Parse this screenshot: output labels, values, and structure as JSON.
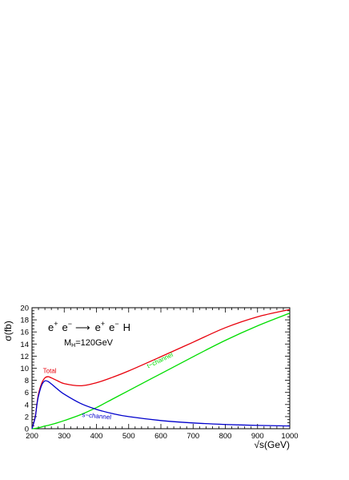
{
  "chart_data": {
    "type": "line",
    "xlabel": "√s(GeV)",
    "ylabel": "σ(fb)",
    "xlim": [
      200,
      1000
    ],
    "ylim": [
      0,
      20
    ],
    "x_ticks": [
      "200",
      "300",
      "400",
      "500",
      "600",
      "700",
      "800",
      "900",
      "1000"
    ],
    "y_ticks": [
      "0",
      "2",
      "4",
      "6",
      "8",
      "10",
      "12",
      "14",
      "16",
      "18",
      "20"
    ],
    "grid": false,
    "annotation": {
      "process": {
        "initial_1": "e",
        "initial_1_sup": "+",
        "initial_2": "e",
        "initial_2_sup": "−",
        "arrow": "⟶",
        "final_1": "e",
        "final_1_sup": "+",
        "final_2": "e",
        "final_2_sup": "−",
        "final_3": "H"
      },
      "mass": {
        "symbol": "M",
        "subscript": "H",
        "value": "=120GeV"
      }
    },
    "x": [
      210,
      215,
      220,
      230,
      240,
      250,
      260,
      280,
      300,
      350,
      400,
      450,
      500,
      600,
      700,
      800,
      900,
      1000
    ],
    "series": [
      {
        "name": "Total",
        "color": "#e8000b",
        "values": [
          2.0,
          4.0,
          5.7,
          7.5,
          8.4,
          8.6,
          8.4,
          7.9,
          7.45,
          7.1,
          7.6,
          8.5,
          9.55,
          11.9,
          14.3,
          16.7,
          18.5,
          19.7
        ]
      },
      {
        "name": "t-channel",
        "color": "#00dd00",
        "values": [
          0.05,
          0.1,
          0.15,
          0.3,
          0.45,
          0.55,
          0.7,
          1.0,
          1.35,
          2.3,
          3.5,
          4.9,
          6.3,
          9.1,
          11.9,
          14.6,
          17.0,
          19.1
        ]
      },
      {
        "name": "s-channel",
        "color": "#0000cc",
        "values": [
          1.9,
          3.9,
          5.4,
          7.2,
          7.9,
          7.8,
          7.4,
          6.5,
          5.7,
          4.2,
          3.2,
          2.5,
          2.0,
          1.35,
          0.95,
          0.7,
          0.55,
          0.45
        ]
      }
    ],
    "curve_labels": [
      {
        "text": "Total",
        "color": "#e8000b",
        "x": 255,
        "y": 9.2,
        "rotate": 0
      },
      {
        "text": "t−channel",
        "color": "#00dd00",
        "x": 600,
        "y": 11.0,
        "rotate": -26
      },
      {
        "text": "s−channel",
        "color": "#0000cc",
        "x": 400,
        "y": 1.75,
        "rotate": 5
      }
    ]
  }
}
